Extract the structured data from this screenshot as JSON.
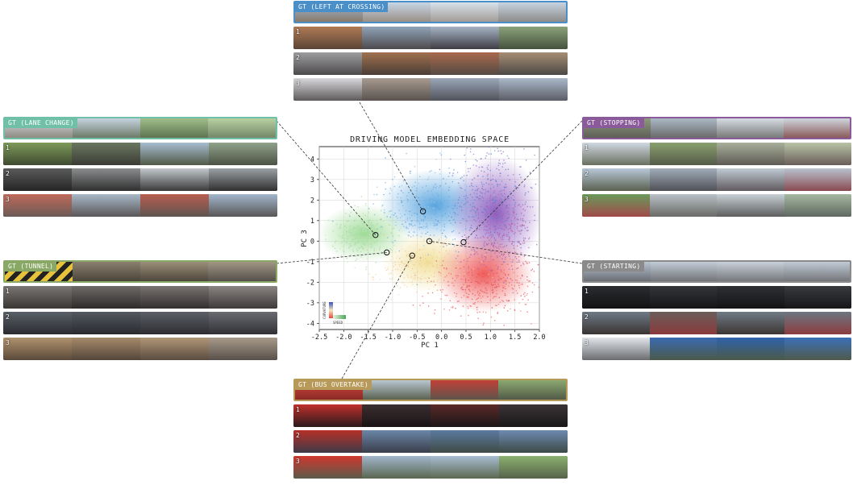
{
  "chart_data": {
    "type": "scatter",
    "title": "DRIVING MODEL EMBEDDING SPACE",
    "xlabel": "PC 1",
    "ylabel": "PC 3",
    "xlim": [
      -2.5,
      2.0
    ],
    "ylim": [
      -4.3,
      4.6
    ],
    "xticks": [
      "-2.5",
      "-2.0",
      "-1.5",
      "-1.0",
      "-0.5",
      "0.0",
      "0.5",
      "1.0",
      "1.5",
      "2.0"
    ],
    "yticks": [
      "-4",
      "-3",
      "-2",
      "-1",
      "0",
      "1",
      "2",
      "3",
      "4"
    ],
    "grid": true,
    "colorbar": {
      "vertical_label": "CURVATURE",
      "horizontal_label": "SPEED",
      "placement": "bottom-left"
    },
    "highlighted_points": [
      {
        "scenario": "GT (LEFT AT CROSSING)",
        "x": -0.38,
        "y": 1.45
      },
      {
        "scenario": "GT (LANE CHANGE)",
        "x": -1.35,
        "y": 0.3
      },
      {
        "scenario": "GT (STOPPING)",
        "x": 0.45,
        "y": -0.05
      },
      {
        "scenario": "GT (TUNNEL)",
        "x": -1.12,
        "y": -0.55
      },
      {
        "scenario": "GT (STARTING)",
        "x": -0.25,
        "y": 0.0
      },
      {
        "scenario": "GT (BUS OVERTAKE)",
        "x": -0.6,
        "y": -0.7
      }
    ]
  },
  "panels": {
    "left_crossing": {
      "gt": "GT (LEFT AT CROSSING)",
      "color": "#4a8fc7",
      "rows": [
        "1",
        "2",
        "3"
      ]
    },
    "lane_change": {
      "gt": "GT (LANE CHANGE)",
      "color": "#6fc0a6",
      "rows": [
        "1",
        "2",
        "3"
      ]
    },
    "stopping": {
      "gt": "GT (STOPPING)",
      "color": "#8a5a9b",
      "rows": [
        "1",
        "2",
        "3"
      ]
    },
    "tunnel": {
      "gt": "GT (TUNNEL)",
      "color": "#8aa865",
      "rows": [
        "1",
        "2",
        "3"
      ]
    },
    "starting": {
      "gt": "GT (STARTING)",
      "color": "#8a8a8a",
      "rows": [
        "1",
        "2",
        "3"
      ]
    },
    "bus_overtake": {
      "gt": "GT (BUS OVERTAKE)",
      "color": "#b79a5a",
      "rows": [
        "1",
        "2",
        "3"
      ]
    }
  }
}
